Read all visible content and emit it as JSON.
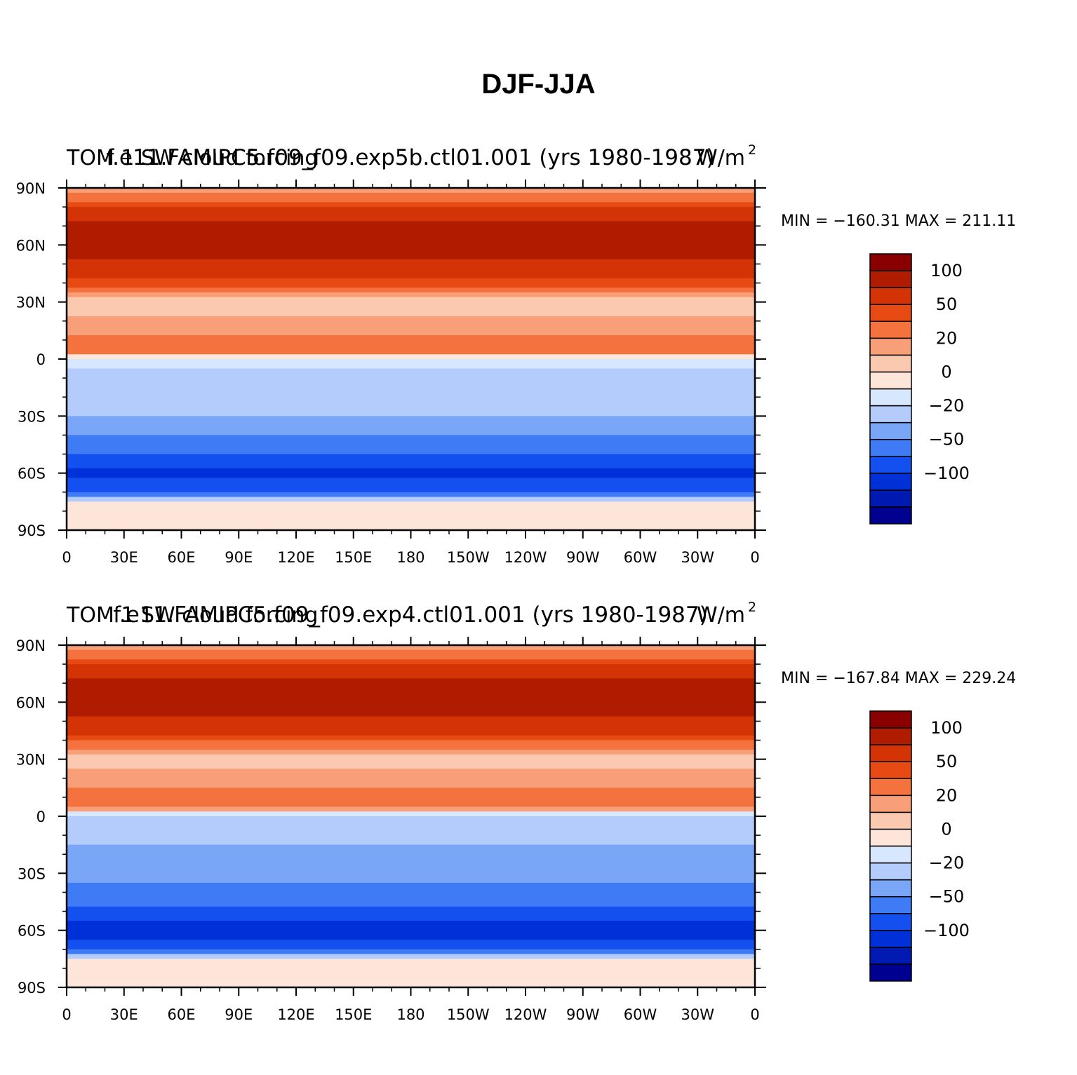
{
  "title": "DJF-JJA",
  "chart_data": [
    {
      "type": "heatmap",
      "title": "f.e11.FAMIPC5.f09_f09.exp5b.ctl01.001 (yrs 1980-1987)",
      "variable": "TOM 1 SW cloud forcing",
      "units": "W/m",
      "units_exp": "2",
      "stats": "MIN = −160.31  MAX = 211.11",
      "min": -160.31,
      "max": 211.11,
      "x_ticks": [
        "0",
        "30E",
        "60E",
        "90E",
        "120E",
        "150E",
        "180",
        "150W",
        "120W",
        "90W",
        "60W",
        "30W",
        "0"
      ],
      "y_ticks": [
        "90N",
        "60N",
        "30N",
        "0",
        "30S",
        "60S",
        "90S"
      ],
      "xlim": [
        0,
        360
      ],
      "ylim": [
        -90,
        90
      ],
      "colorbar_levels": [
        -150,
        -125,
        -100,
        -75,
        -50,
        -35,
        -20,
        -10,
        0,
        10,
        20,
        35,
        50,
        75,
        100,
        125,
        150
      ],
      "colorbar_labels": [
        {
          "v": -100,
          "t": "−100"
        },
        {
          "v": -50,
          "t": "−50"
        },
        {
          "v": -20,
          "t": "−20"
        },
        {
          "v": 0,
          "t": "0"
        },
        {
          "v": 20,
          "t": "20"
        },
        {
          "v": 50,
          "t": "50"
        },
        {
          "v": 100,
          "t": "100"
        }
      ],
      "latitude_profile": [
        {
          "lat": 90,
          "value": 5
        },
        {
          "lat": 75,
          "value": 70
        },
        {
          "lat": 60,
          "value": 95
        },
        {
          "lat": 45,
          "value": 60
        },
        {
          "lat": 30,
          "value": 5
        },
        {
          "lat": 15,
          "value": 15
        },
        {
          "lat": 5,
          "value": 35
        },
        {
          "lat": 0,
          "value": -15
        },
        {
          "lat": -15,
          "value": -30
        },
        {
          "lat": -30,
          "value": -35
        },
        {
          "lat": -45,
          "value": -60
        },
        {
          "lat": -60,
          "value": -110
        },
        {
          "lat": -70,
          "value": -80
        },
        {
          "lat": -75,
          "value": -5
        },
        {
          "lat": -90,
          "value": -5
        }
      ]
    },
    {
      "type": "heatmap",
      "title": "f.e11.FAMIPC5.f09_f09.exp4.ctl01.001 (yrs 1980-1987)",
      "variable": "TOM 1 SW cloud forcing",
      "units": "W/m",
      "units_exp": "2",
      "stats": "MIN = −167.84  MAX = 229.24",
      "min": -167.84,
      "max": 229.24,
      "x_ticks": [
        "0",
        "30E",
        "60E",
        "90E",
        "120E",
        "150E",
        "180",
        "150W",
        "120W",
        "90W",
        "60W",
        "30W",
        "0"
      ],
      "y_ticks": [
        "90N",
        "60N",
        "30N",
        "0",
        "30S",
        "60S",
        "90S"
      ],
      "xlim": [
        0,
        360
      ],
      "ylim": [
        -90,
        90
      ],
      "colorbar_levels": [
        -150,
        -125,
        -100,
        -75,
        -50,
        -35,
        -20,
        -10,
        0,
        10,
        20,
        35,
        50,
        75,
        100,
        125,
        150
      ],
      "colorbar_labels": [
        {
          "v": -100,
          "t": "−100"
        },
        {
          "v": -50,
          "t": "−50"
        },
        {
          "v": -20,
          "t": "−20"
        },
        {
          "v": 0,
          "t": "0"
        },
        {
          "v": 20,
          "t": "20"
        },
        {
          "v": 50,
          "t": "50"
        },
        {
          "v": 100,
          "t": "100"
        }
      ],
      "latitude_profile": [
        {
          "lat": 90,
          "value": 5
        },
        {
          "lat": 75,
          "value": 70
        },
        {
          "lat": 60,
          "value": 95
        },
        {
          "lat": 45,
          "value": 55
        },
        {
          "lat": 30,
          "value": 5
        },
        {
          "lat": 15,
          "value": 20
        },
        {
          "lat": 5,
          "value": 30
        },
        {
          "lat": 0,
          "value": -25
        },
        {
          "lat": -15,
          "value": -35
        },
        {
          "lat": -30,
          "value": -40
        },
        {
          "lat": -45,
          "value": -70
        },
        {
          "lat": -60,
          "value": -115
        },
        {
          "lat": -70,
          "value": -85
        },
        {
          "lat": -75,
          "value": -5
        },
        {
          "lat": -90,
          "value": -5
        }
      ]
    }
  ],
  "colors": [
    "#000090",
    "#0019b0",
    "#0030d8",
    "#1450f0",
    "#3f7bf5",
    "#7aa6f8",
    "#b3ccfb",
    "#d7e7fe",
    "#fde6d9",
    "#fbc8b0",
    "#f89f79",
    "#f4723d",
    "#e84a14",
    "#d43306",
    "#b01c00",
    "#8a0000"
  ]
}
